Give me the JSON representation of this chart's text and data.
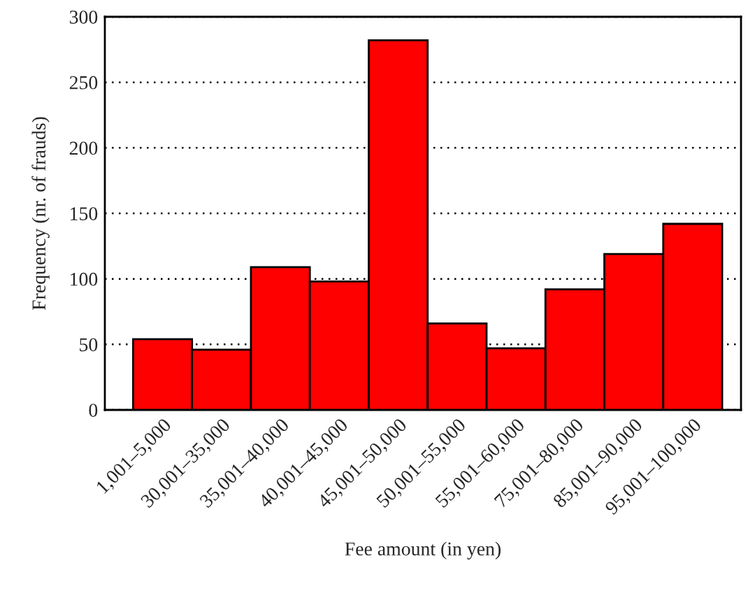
{
  "chart_data": {
    "type": "bar",
    "xlabel": "Fee amount (in yen)",
    "ylabel": "Frequency (nr. of frauds)",
    "categories": [
      "1,001–5,000",
      "30,001–35,000",
      "35,001–40,000",
      "40,001–45,000",
      "45,001–50,000",
      "50,001–55,000",
      "55,001–60,000",
      "75,001–80,000",
      "85,001–90,000",
      "95,001–100,000"
    ],
    "values": [
      54,
      46,
      109,
      98,
      282,
      66,
      47,
      92,
      119,
      142
    ],
    "color": "#ff0000",
    "ylim": [
      0,
      300
    ],
    "yticks": [
      0,
      50,
      100,
      150,
      200,
      250,
      300
    ],
    "grid": "y"
  }
}
